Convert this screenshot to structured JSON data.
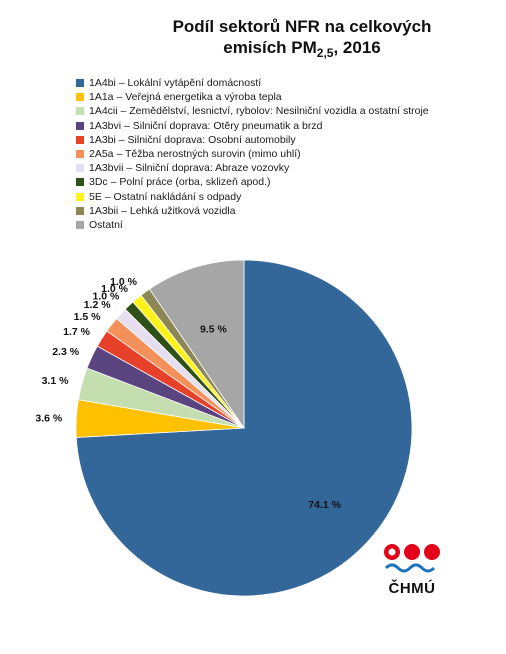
{
  "title": {
    "line1": "Podíl sektorů NFR na celkových",
    "line2_prefix": "emisích PM",
    "line2_sub": "2,5",
    "line2_suffix": ", 2016"
  },
  "logo": {
    "text": "ČHMÚ"
  },
  "chart_data": {
    "type": "pie",
    "title": "Podíl sektorů NFR na celkových emisích PM2,5, 2016",
    "legend_position": "top",
    "start": "12 o'clock",
    "direction": "clockwise",
    "slices": [
      {
        "label": "1A4bi – Lokální vytápění domácností",
        "value": 74.1,
        "value_label": "74.1 %",
        "color": "#336699"
      },
      {
        "label": "1A1a – Veřejná energetika a výroba tepla",
        "value": 3.6,
        "value_label": "3.6 %",
        "color": "#FFC000"
      },
      {
        "label": "1A4cii – Zemědělství, lesnictví, rybolov: Nesilniční vozidla a ostatní stroje",
        "value": 3.1,
        "value_label": "3.1 %",
        "color": "#C4DEB0"
      },
      {
        "label": "1A3bvi – Silniční doprava: Otěry pneumatik a brzd",
        "value": 2.3,
        "value_label": "2.3 %",
        "color": "#5A4480"
      },
      {
        "label": "1A3bi – Silniční doprava: Osobní automobily",
        "value": 1.7,
        "value_label": "1.7 %",
        "color": "#E8412A"
      },
      {
        "label": "2A5a – Těžba nerostných surovin (mimo uhlí)",
        "value": 1.5,
        "value_label": "1.5 %",
        "color": "#F4915A"
      },
      {
        "label": "1A3bvii – Silniční doprava: Abraze vozovky",
        "value": 1.2,
        "value_label": "1.2 %",
        "color": "#E4DEEE"
      },
      {
        "label": "3Dc – Polní práce (orba, sklizeň apod.)",
        "value": 1.0,
        "value_label": "1.0 %",
        "color": "#2F5018"
      },
      {
        "label": "5E – Ostatní nakládání s odpady",
        "value": 1.0,
        "value_label": "1.0 %",
        "color": "#FFF21A"
      },
      {
        "label": "1A3bii – Lehká užitková vozidla",
        "value": 1.0,
        "value_label": "1.0 %",
        "color": "#8C8856"
      },
      {
        "label": "Ostatní",
        "value": 9.5,
        "value_label": "9.5 %",
        "color": "#A6A6A6"
      }
    ]
  }
}
